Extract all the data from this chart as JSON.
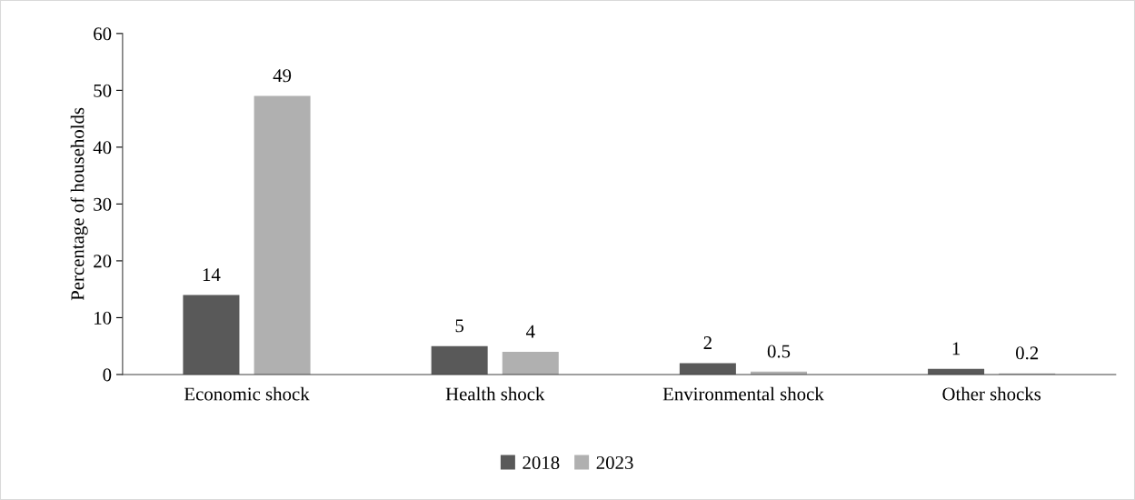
{
  "chart_data": {
    "type": "bar",
    "ylabel": "Percentage of households",
    "categories": [
      "Economic shock",
      "Health shock",
      "Environmental shock",
      "Other shocks"
    ],
    "series": [
      {
        "name": "2018",
        "color": "#595959",
        "values": [
          14,
          5,
          2,
          1
        ]
      },
      {
        "name": "2023",
        "color": "#b0b0b0",
        "values": [
          49,
          4,
          0.5,
          0.2
        ]
      }
    ],
    "ylim": [
      0,
      60
    ],
    "yticks": [
      0,
      10,
      20,
      30,
      40,
      50,
      60
    ],
    "grid": false,
    "legend": "bottom",
    "data_labels": true
  }
}
